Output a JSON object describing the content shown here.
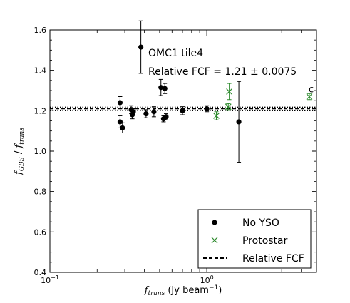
{
  "chart_data": {
    "type": "scatter",
    "xscale": "log",
    "xlim": [
      0.1,
      5.0
    ],
    "ylim": [
      0.4,
      1.6
    ],
    "xlabel_main": "f",
    "xlabel_sub": "trans",
    "xlabel_units": " (Jy beam",
    "xlabel_exp": "−1",
    "xlabel_close": ")",
    "ylabel_num": "f",
    "ylabel_num_sub": "GBS",
    "ylabel_sep": " / ",
    "ylabel_den": "f",
    "ylabel_den_sub": "trans",
    "x_ticks": [
      {
        "value": 0.1,
        "base": "10",
        "exp": "−1"
      },
      {
        "value": 1.0,
        "base": "10",
        "exp": "0"
      }
    ],
    "y_ticks": [
      0.4,
      0.6,
      0.8,
      1.0,
      1.2,
      1.4,
      1.6
    ],
    "annotation_title": "OMC1 tile4",
    "annotation_fcf": "Relative FCF = 1.21 ± 0.0075",
    "relative_fcf": {
      "value": 1.21,
      "band_low": 1.2025,
      "band_high": 1.2175
    },
    "series": [
      {
        "name": "No YSO",
        "marker": "circle",
        "color": "#000000",
        "points": [
          {
            "x": 0.28,
            "y": 1.24,
            "err": 0.03
          },
          {
            "x": 0.28,
            "y": 1.145,
            "err": 0.03
          },
          {
            "x": 0.29,
            "y": 1.115,
            "err": 0.025
          },
          {
            "x": 0.33,
            "y": 1.205,
            "err": 0.02
          },
          {
            "x": 0.335,
            "y": 1.18,
            "err": 0.02
          },
          {
            "x": 0.34,
            "y": 1.195,
            "err": 0.015
          },
          {
            "x": 0.38,
            "y": 1.515,
            "err": 0.13
          },
          {
            "x": 0.41,
            "y": 1.185,
            "err": 0.02
          },
          {
            "x": 0.46,
            "y": 1.195,
            "err": 0.025
          },
          {
            "x": 0.51,
            "y": 1.315,
            "err": 0.04
          },
          {
            "x": 0.53,
            "y": 1.16,
            "err": 0.015
          },
          {
            "x": 0.54,
            "y": 1.31,
            "err": 0.025
          },
          {
            "x": 0.55,
            "y": 1.17,
            "err": 0.015
          },
          {
            "x": 0.7,
            "y": 1.2,
            "err": 0.02
          },
          {
            "x": 1.0,
            "y": 1.21,
            "err": 0.015
          },
          {
            "x": 1.6,
            "y": 1.145,
            "err": 0.2
          }
        ]
      },
      {
        "name": "Protostar",
        "marker": "x",
        "color": "#2e8b2e",
        "points": [
          {
            "x": 1.15,
            "y": 1.175,
            "err": 0.02
          },
          {
            "x": 1.37,
            "y": 1.22,
            "err": 0.015
          },
          {
            "x": 1.39,
            "y": 1.295,
            "err": 0.04
          },
          {
            "x": 4.5,
            "y": 1.27,
            "err": 0.015
          }
        ]
      }
    ],
    "point_label": {
      "text": "c",
      "x": 4.55,
      "y": 1.305
    },
    "legend": {
      "placement": "bottom-right",
      "entries": [
        "No YSO",
        "Protostar",
        "Relative FCF"
      ]
    }
  }
}
